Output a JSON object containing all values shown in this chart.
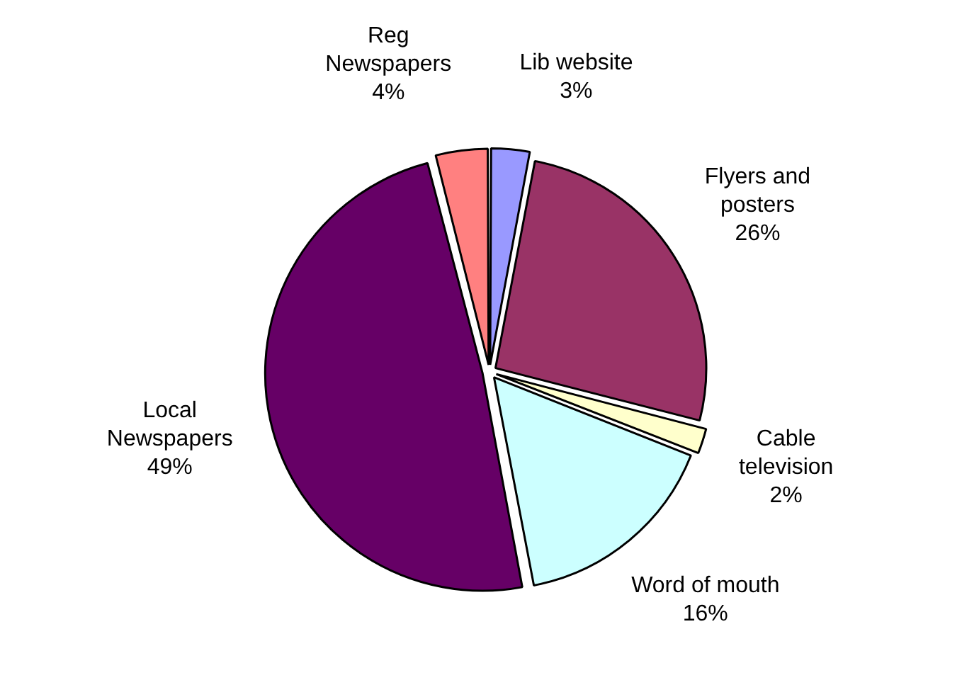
{
  "chart_data": {
    "type": "pie",
    "categories": [
      "Lib website",
      "Flyers and posters",
      "Cable television",
      "Word of mouth",
      "Local Newspapers",
      "Reg Newspapers"
    ],
    "values": [
      3,
      26,
      2,
      16,
      49,
      4
    ],
    "colors": [
      "#9999ff",
      "#993366",
      "#ffffcc",
      "#ccffff",
      "#660066",
      "#ff8080"
    ],
    "value_labels": [
      "3%",
      "26%",
      "2%",
      "16%",
      "49%",
      "4%"
    ],
    "legend": false
  }
}
